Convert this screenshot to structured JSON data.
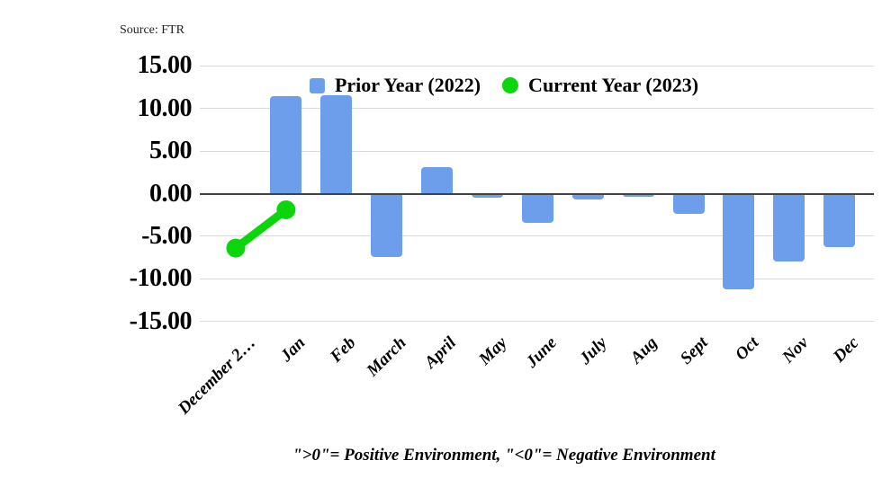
{
  "source_label": "Source: FTR",
  "footer_note": "\">0\"= Positive Environment, \"<0\"= Negative Environment",
  "colors": {
    "bar_blue": "#6d9eeb",
    "line_green": "#0bd60b",
    "gridline": "#d9d9d9",
    "zero_line": "#424242",
    "text": "#000000"
  },
  "legend": [
    {
      "label": "Prior Year (2022)",
      "marker": "square",
      "color": "#6d9eeb"
    },
    {
      "label": "Current Year (2023)",
      "marker": "circle",
      "color": "#0bd60b"
    }
  ],
  "chart_data": {
    "type": "bar",
    "title": "",
    "xlabel": "",
    "ylabel": "",
    "categories": [
      "December 2…",
      "Jan",
      "Feb",
      "March",
      "April",
      "May",
      "June",
      "July",
      "Aug",
      "Sept",
      "Oct",
      "Nov",
      "Dec"
    ],
    "series": [
      {
        "name": "Prior Year (2022)",
        "type": "bar",
        "color": "#6d9eeb",
        "values": [
          null,
          11.5,
          11.6,
          -7.4,
          3.1,
          -0.5,
          -3.4,
          -0.7,
          -0.4,
          -2.4,
          -11.2,
          -8.0,
          -6.3
        ]
      },
      {
        "name": "Current Year (2023)",
        "type": "line",
        "color": "#0bd60b",
        "values": [
          -6.4,
          -1.9,
          null,
          null,
          null,
          null,
          null,
          null,
          null,
          null,
          null,
          null,
          null
        ]
      }
    ],
    "ylim": [
      -15,
      15
    ],
    "yticks": [
      15,
      10,
      5,
      0,
      -5,
      -10,
      -15
    ],
    "ytick_label_format": "two_decimals",
    "grid": true,
    "legend_position": "top-center",
    "annotation": "\">0\"= Positive Environment, \"<0\"= Negative Environment",
    "source": "FTR"
  }
}
